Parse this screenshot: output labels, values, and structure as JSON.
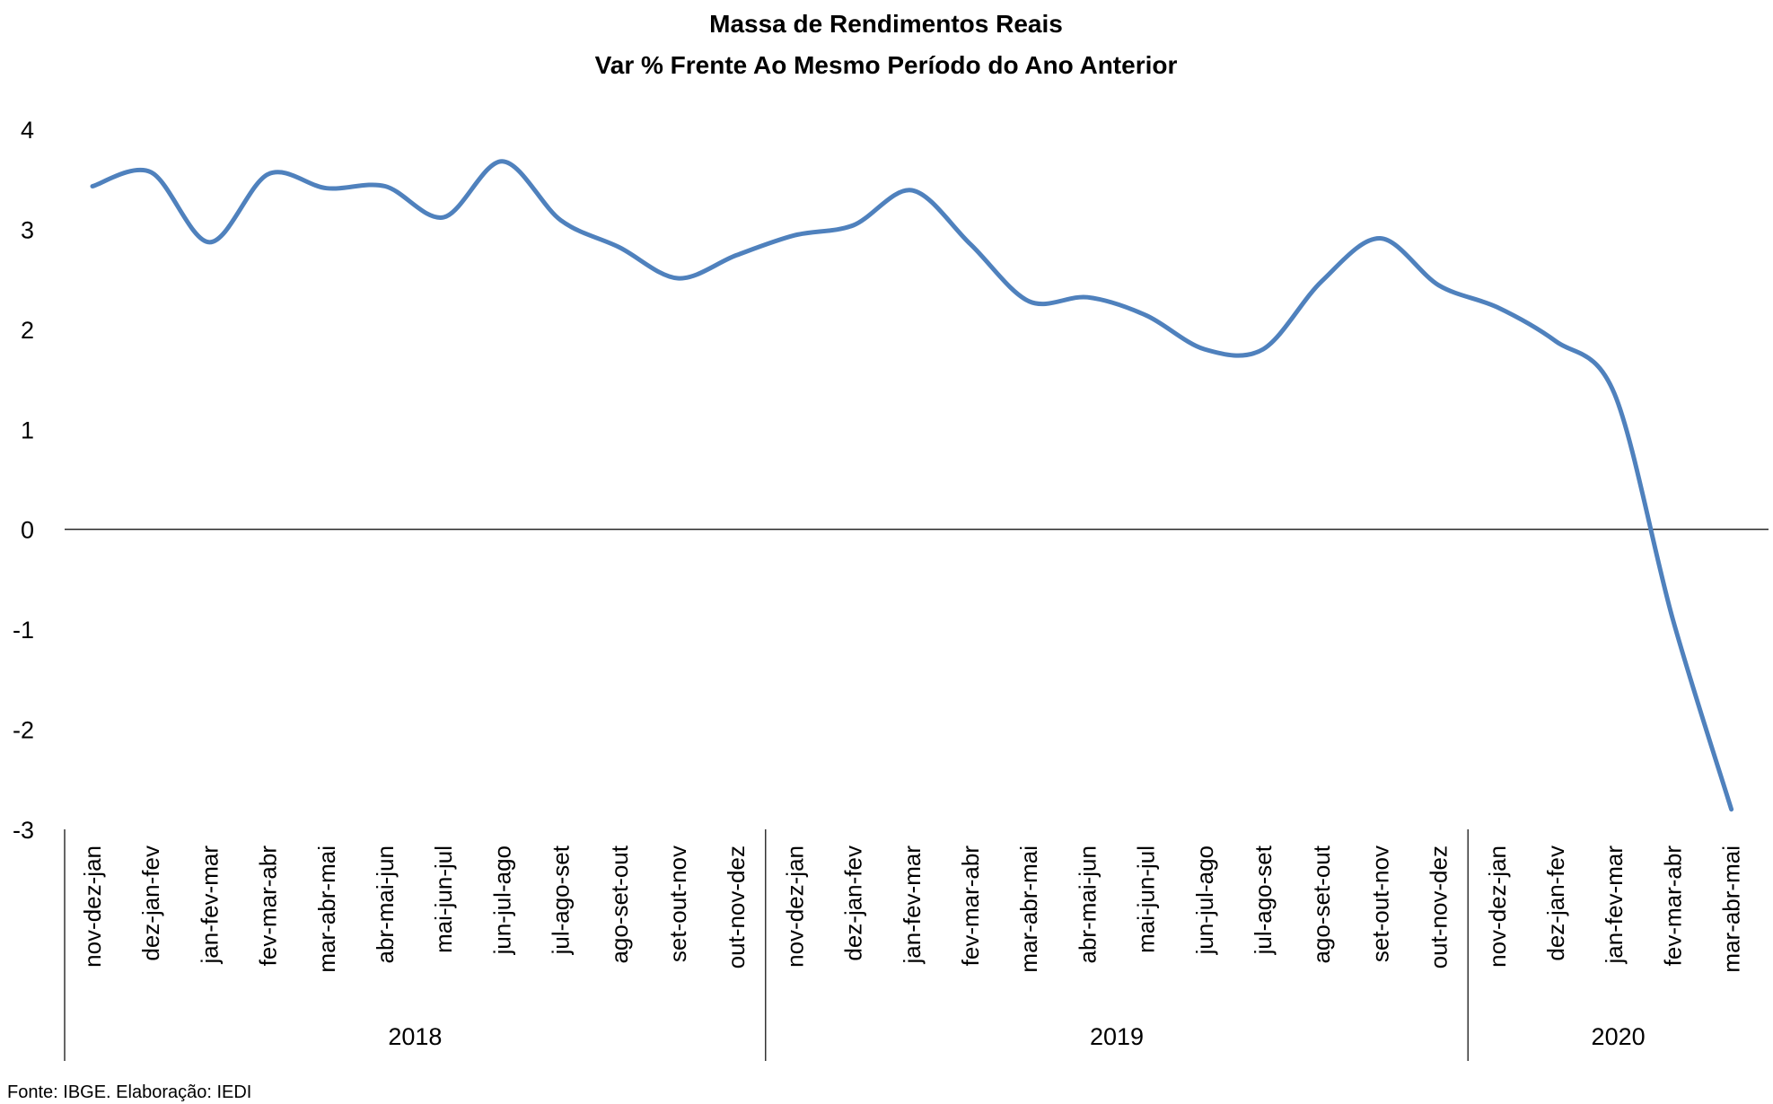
{
  "chart_data": {
    "type": "line",
    "title": "Massa de Rendimentos Reais",
    "subtitle": "Var % Frente Ao Mesmo Período do Ano Anterior",
    "xlabel": "",
    "ylabel": "",
    "ylim": [
      -3,
      4
    ],
    "yticks": [
      "4",
      "3",
      "2",
      "1",
      "0",
      "-1",
      "-2",
      "-3"
    ],
    "grid": false,
    "legend": "none",
    "line_color": "#4F81BD",
    "categories": [
      "nov-dez-jan",
      "dez-jan-fev",
      "jan-fev-mar",
      "fev-mar-abr",
      "mar-abr-mai",
      "abr-mai-jun",
      "mai-jun-jul",
      "jun-jul-ago",
      "jul-ago-set",
      "ago-set-out",
      "set-out-nov",
      "out-nov-dez",
      "nov-dez-jan",
      "dez-jan-fev",
      "jan-fev-mar",
      "fev-mar-abr",
      "mar-abr-mai",
      "abr-mai-jun",
      "mai-jun-jul",
      "jun-jul-ago",
      "jul-ago-set",
      "ago-set-out",
      "set-out-nov",
      "out-nov-dez",
      "nov-dez-jan",
      "dez-jan-fev",
      "jan-fev-mar",
      "fev-mar-abr",
      "mar-abr-mai"
    ],
    "groups": [
      {
        "label": "2018",
        "count": 12
      },
      {
        "label": "2019",
        "count": 12
      },
      {
        "label": "2020",
        "count": 5
      }
    ],
    "series": [
      {
        "values": [
          3.43,
          3.57,
          2.87,
          3.55,
          3.41,
          3.43,
          3.12,
          3.68,
          3.09,
          2.82,
          2.51,
          2.74,
          2.94,
          3.04,
          3.39,
          2.85,
          2.28,
          2.32,
          2.14,
          1.8,
          1.8,
          2.48,
          2.91,
          2.44,
          2.22,
          1.88,
          1.36,
          -0.9,
          -2.8
        ]
      }
    ]
  },
  "source_note": "Fonte: IBGE. Elaboração: IEDI"
}
